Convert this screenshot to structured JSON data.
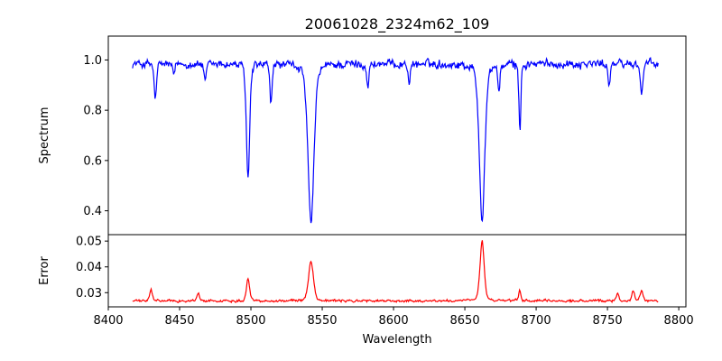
{
  "chart_data": [
    {
      "type": "line",
      "title": "20061028_2324m62_109",
      "xlabel": "",
      "ylabel": "Spectrum",
      "xlim": [
        8400,
        8805
      ],
      "ylim": [
        0.305,
        1.095
      ],
      "xticks": [],
      "yticks": [
        0.4,
        0.6,
        0.8,
        1.0
      ],
      "ytick_labels": [
        "0.4",
        "0.6",
        "0.8",
        "1.0"
      ],
      "grid": false,
      "series": [
        {
          "color": "#0000ff",
          "x_start": 8417,
          "x_end": 8786,
          "baseline": 0.985,
          "noise_amplitude": 0.025,
          "features": [
            {
              "center": 8433,
              "depth": 0.14,
              "width": 0.9
            },
            {
              "center": 8446,
              "depth": 0.05,
              "width": 0.8
            },
            {
              "center": 8468,
              "depth": 0.08,
              "width": 0.8
            },
            {
              "center": 8498.0,
              "depth": 0.46,
              "width": 1.2
            },
            {
              "center": 8514,
              "depth": 0.16,
              "width": 0.8
            },
            {
              "center": 8542.1,
              "depth": 0.64,
              "width": 2.2
            },
            {
              "center": 8582,
              "depth": 0.09,
              "width": 0.8
            },
            {
              "center": 8611,
              "depth": 0.07,
              "width": 0.8
            },
            {
              "center": 8662.1,
              "depth": 0.62,
              "width": 2.0
            },
            {
              "center": 8674,
              "depth": 0.1,
              "width": 0.8
            },
            {
              "center": 8688.6,
              "depth": 0.27,
              "width": 0.7
            },
            {
              "center": 8751,
              "depth": 0.08,
              "width": 0.8
            },
            {
              "center": 8774,
              "depth": 0.12,
              "width": 0.9
            }
          ]
        }
      ]
    },
    {
      "type": "line",
      "title": "",
      "xlabel": "Wavelength",
      "ylabel": "Error",
      "xlim": [
        8400,
        8805
      ],
      "ylim": [
        0.0245,
        0.0525
      ],
      "xticks": [
        8400,
        8450,
        8500,
        8550,
        8600,
        8650,
        8700,
        8750,
        8800
      ],
      "xtick_labels": [
        "8400",
        "8450",
        "8500",
        "8550",
        "8600",
        "8650",
        "8700",
        "8750",
        "8800"
      ],
      "yticks": [
        0.03,
        0.04,
        0.05
      ],
      "ytick_labels": [
        "0.03",
        "0.04",
        "0.05"
      ],
      "grid": false,
      "series": [
        {
          "color": "#ff0000",
          "x_start": 8417,
          "x_end": 8786,
          "baseline": 0.0268,
          "noise_amplitude": 0.0007,
          "features": [
            {
              "center": 8430,
              "height": 0.0045,
              "width": 0.9
            },
            {
              "center": 8463,
              "height": 0.003,
              "width": 0.9
            },
            {
              "center": 8498.0,
              "height": 0.0085,
              "width": 1.2
            },
            {
              "center": 8542.1,
              "height": 0.0155,
              "width": 1.8
            },
            {
              "center": 8662.1,
              "height": 0.0235,
              "width": 1.5
            },
            {
              "center": 8688.6,
              "height": 0.004,
              "width": 0.8
            },
            {
              "center": 8757,
              "height": 0.003,
              "width": 1.0
            },
            {
              "center": 8768,
              "height": 0.004,
              "width": 1.0
            },
            {
              "center": 8774,
              "height": 0.004,
              "width": 1.0
            }
          ]
        }
      ]
    }
  ]
}
